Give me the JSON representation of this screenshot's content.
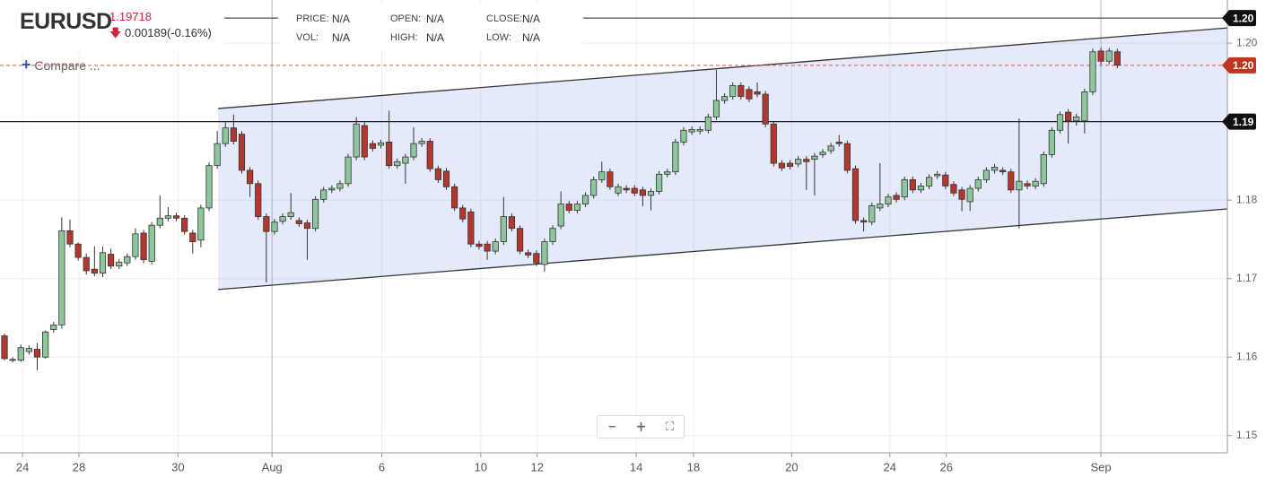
{
  "header": {
    "symbol": "EURUSD",
    "price": "1.19718",
    "change": "0.00189(-0.16%)",
    "compare": "Compare ...",
    "fields": [
      {
        "label": "PRICE:",
        "value": "N/A"
      },
      {
        "label": "OPEN:",
        "value": "N/A"
      },
      {
        "label": "CLOSE:",
        "value": "N/A"
      },
      {
        "label": "VOL:",
        "value": "N/A"
      },
      {
        "label": "HIGH:",
        "value": "N/A"
      },
      {
        "label": "LOW:",
        "value": "N/A"
      }
    ]
  },
  "chart_data": {
    "type": "candlestick",
    "ylim": [
      1.1478,
      1.2055
    ],
    "xlim": [
      -0.55,
      149.45
    ],
    "yticks": [
      {
        "value": 1.2,
        "label": "1.20"
      },
      {
        "value": 1.18,
        "label": "1.18"
      },
      {
        "value": 1.17,
        "label": "1.17"
      },
      {
        "value": 1.16,
        "label": "1.16"
      },
      {
        "value": 1.15,
        "label": "1.15"
      }
    ],
    "xticks": [
      {
        "value": 2.2,
        "label": "24"
      },
      {
        "value": 9.1,
        "label": "28"
      },
      {
        "value": 21.2,
        "label": "30"
      },
      {
        "value": 32.7,
        "label": "Aug"
      },
      {
        "value": 46.1,
        "label": "6"
      },
      {
        "value": 58.2,
        "label": "10"
      },
      {
        "value": 65.1,
        "label": "12"
      },
      {
        "value": 77.2,
        "label": "14"
      },
      {
        "value": 84.2,
        "label": "18"
      },
      {
        "value": 96.2,
        "label": "20"
      },
      {
        "value": 108.2,
        "label": "24"
      },
      {
        "value": 115.1,
        "label": "26"
      },
      {
        "value": 134.0,
        "label": "Sep"
      }
    ],
    "grid": true,
    "up_color": "#8cc69a",
    "down_color": "#b3372c",
    "price_lines": [
      {
        "value": 1.2032,
        "label": "1.20"
      },
      {
        "value": 1.19,
        "label": "1.19"
      }
    ],
    "last_price": {
      "value": 1.19718,
      "label": "1.20"
    },
    "channel": {
      "upper": {
        "x": [
          26.1,
          149.45
        ],
        "y": [
          1.19167,
          1.20194
        ]
      },
      "lower": {
        "x": [
          26.1,
          149.45
        ],
        "y": [
          1.16861,
          1.17888
        ]
      }
    },
    "ohlc": [
      [
        1.1627,
        1.163,
        1.1596,
        1.1598
      ],
      [
        1.1596,
        1.16,
        1.1593,
        1.1597
      ],
      [
        1.1596,
        1.1616,
        1.1594,
        1.1612
      ],
      [
        1.1607,
        1.1615,
        1.1603,
        1.1611
      ],
      [
        1.161,
        1.1618,
        1.1583,
        1.16
      ],
      [
        1.16,
        1.1634,
        1.1598,
        1.1632
      ],
      [
        1.1635,
        1.1645,
        1.1631,
        1.1641
      ],
      [
        1.1641,
        1.1778,
        1.1636,
        1.1761
      ],
      [
        1.1761,
        1.1775,
        1.174,
        1.1744
      ],
      [
        1.1744,
        1.1746,
        1.1723,
        1.1727
      ],
      [
        1.1727,
        1.1732,
        1.1705,
        1.171
      ],
      [
        1.1712,
        1.1741,
        1.1703,
        1.1707
      ],
      [
        1.1707,
        1.1741,
        1.1702,
        1.1733
      ],
      [
        1.1731,
        1.1738,
        1.1712,
        1.1716
      ],
      [
        1.1716,
        1.1725,
        1.1712,
        1.1721
      ],
      [
        1.172,
        1.1732,
        1.1716,
        1.1728
      ],
      [
        1.1728,
        1.1764,
        1.1724,
        1.1757
      ],
      [
        1.1758,
        1.1762,
        1.172,
        1.1724
      ],
      [
        1.1722,
        1.1772,
        1.1718,
        1.1768
      ],
      [
        1.1768,
        1.1806,
        1.1764,
        1.1777
      ],
      [
        1.1777,
        1.1791,
        1.1773,
        1.178
      ],
      [
        1.178,
        1.1784,
        1.1773,
        1.1777
      ],
      [
        1.1777,
        1.1781,
        1.1756,
        1.176
      ],
      [
        1.1758,
        1.1762,
        1.1732,
        1.1747
      ],
      [
        1.1749,
        1.1794,
        1.174,
        1.179
      ],
      [
        1.179,
        1.1848,
        1.1786,
        1.1844
      ],
      [
        1.1844,
        1.1888,
        1.184,
        1.1872
      ],
      [
        1.1872,
        1.1899,
        1.1868,
        1.1892
      ],
      [
        1.1892,
        1.1909,
        1.1871,
        1.1875
      ],
      [
        1.1884,
        1.1888,
        1.1834,
        1.1838
      ],
      [
        1.1838,
        1.1842,
        1.1804,
        1.1821
      ],
      [
        1.1821,
        1.1825,
        1.1775,
        1.1779
      ],
      [
        1.1779,
        1.1783,
        1.1695,
        1.176
      ],
      [
        1.176,
        1.1776,
        1.1756,
        1.1772
      ],
      [
        1.1773,
        1.1783,
        1.1769,
        1.1779
      ],
      [
        1.1779,
        1.1809,
        1.1775,
        1.1784
      ],
      [
        1.1774,
        1.1778,
        1.1766,
        1.177
      ],
      [
        1.1771,
        1.1775,
        1.1724,
        1.1764
      ],
      [
        1.1764,
        1.1805,
        1.176,
        1.1801
      ],
      [
        1.1801,
        1.1817,
        1.1797,
        1.1813
      ],
      [
        1.1813,
        1.1819,
        1.1809,
        1.1815
      ],
      [
        1.1815,
        1.1825,
        1.1811,
        1.1821
      ],
      [
        1.1821,
        1.1859,
        1.1817,
        1.1855
      ],
      [
        1.1855,
        1.1906,
        1.1851,
        1.1897
      ],
      [
        1.1895,
        1.1899,
        1.1851,
        1.1855
      ],
      [
        1.1872,
        1.1876,
        1.1862,
        1.1866
      ],
      [
        1.187,
        1.1877,
        1.1866,
        1.1873
      ],
      [
        1.1874,
        1.1914,
        1.184,
        1.1844
      ],
      [
        1.1844,
        1.1853,
        1.184,
        1.1849
      ],
      [
        1.1847,
        1.1859,
        1.1821,
        1.1855
      ],
      [
        1.1855,
        1.1893,
        1.1851,
        1.1872
      ],
      [
        1.1872,
        1.1879,
        1.1868,
        1.1875
      ],
      [
        1.1875,
        1.1879,
        1.1836,
        1.184
      ],
      [
        1.184,
        1.1844,
        1.1822,
        1.1826
      ],
      [
        1.1837,
        1.1841,
        1.1813,
        1.1817
      ],
      [
        1.1817,
        1.1821,
        1.1786,
        1.179
      ],
      [
        1.179,
        1.1794,
        1.1772,
        1.1776
      ],
      [
        1.1785,
        1.1789,
        1.174,
        1.1744
      ],
      [
        1.1744,
        1.1748,
        1.1737,
        1.1741
      ],
      [
        1.1744,
        1.1748,
        1.1724,
        1.1735
      ],
      [
        1.1735,
        1.1751,
        1.1731,
        1.1747
      ],
      [
        1.1747,
        1.1804,
        1.1743,
        1.1779
      ],
      [
        1.1779,
        1.1783,
        1.176,
        1.1764
      ],
      [
        1.1764,
        1.1768,
        1.1731,
        1.1735
      ],
      [
        1.1733,
        1.1737,
        1.1726,
        1.173
      ],
      [
        1.1732,
        1.1736,
        1.1716,
        1.172
      ],
      [
        1.1718,
        1.1751,
        1.1709,
        1.1747
      ],
      [
        1.1747,
        1.1768,
        1.1743,
        1.1764
      ],
      [
        1.1767,
        1.1811,
        1.1763,
        1.1795
      ],
      [
        1.1795,
        1.1799,
        1.1783,
        1.1787
      ],
      [
        1.1787,
        1.1799,
        1.1783,
        1.1795
      ],
      [
        1.1795,
        1.181,
        1.1791,
        1.1806
      ],
      [
        1.1806,
        1.183,
        1.1802,
        1.1826
      ],
      [
        1.1826,
        1.1849,
        1.1822,
        1.1836
      ],
      [
        1.1836,
        1.184,
        1.1813,
        1.1817
      ],
      [
        1.1809,
        1.1821,
        1.1805,
        1.1817
      ],
      [
        1.1815,
        1.1819,
        1.1809,
        1.1813
      ],
      [
        1.1815,
        1.1819,
        1.1805,
        1.1809
      ],
      [
        1.1813,
        1.1817,
        1.1792,
        1.1806
      ],
      [
        1.1806,
        1.1815,
        1.1787,
        1.1811
      ],
      [
        1.1811,
        1.1837,
        1.1807,
        1.1833
      ],
      [
        1.1833,
        1.184,
        1.1829,
        1.1836
      ],
      [
        1.1836,
        1.1878,
        1.1832,
        1.1874
      ],
      [
        1.1874,
        1.1893,
        1.187,
        1.1889
      ],
      [
        1.1887,
        1.1894,
        1.1883,
        1.189
      ],
      [
        1.1888,
        1.1894,
        1.1884,
        1.189
      ],
      [
        1.1889,
        1.191,
        1.1885,
        1.1906
      ],
      [
        1.1906,
        1.1966,
        1.1902,
        1.1927
      ],
      [
        1.1927,
        1.1936,
        1.1923,
        1.1932
      ],
      [
        1.1932,
        1.195,
        1.1928,
        1.1946
      ],
      [
        1.1946,
        1.195,
        1.1928,
        1.1932
      ],
      [
        1.1941,
        1.1945,
        1.1925,
        1.1929
      ],
      [
        1.1938,
        1.195,
        1.1931,
        1.1935
      ],
      [
        1.1935,
        1.1939,
        1.1893,
        1.1897
      ],
      [
        1.1897,
        1.1901,
        1.1843,
        1.1847
      ],
      [
        1.1847,
        1.1851,
        1.1837,
        1.1841
      ],
      [
        1.1847,
        1.1851,
        1.1839,
        1.1843
      ],
      [
        1.1846,
        1.1856,
        1.1842,
        1.1852
      ],
      [
        1.1852,
        1.1856,
        1.1813,
        1.1849
      ],
      [
        1.1852,
        1.186,
        1.1806,
        1.1856
      ],
      [
        1.1858,
        1.1865,
        1.1854,
        1.1861
      ],
      [
        1.1863,
        1.1873,
        1.1859,
        1.1869
      ],
      [
        1.1874,
        1.1883,
        1.1868,
        1.1872
      ],
      [
        1.1872,
        1.1876,
        1.1834,
        1.1838
      ],
      [
        1.184,
        1.1844,
        1.177,
        1.1774
      ],
      [
        1.1774,
        1.1778,
        1.176,
        1.1772
      ],
      [
        1.1772,
        1.1797,
        1.1768,
        1.1793
      ],
      [
        1.179,
        1.1847,
        1.1786,
        1.1795
      ],
      [
        1.1795,
        1.1808,
        1.1791,
        1.1804
      ],
      [
        1.1806,
        1.181,
        1.1797,
        1.1801
      ],
      [
        1.1804,
        1.183,
        1.18,
        1.1826
      ],
      [
        1.1826,
        1.183,
        1.1809,
        1.1813
      ],
      [
        1.1813,
        1.1822,
        1.1809,
        1.1818
      ],
      [
        1.1818,
        1.1833,
        1.1814,
        1.1829
      ],
      [
        1.1831,
        1.1837,
        1.1827,
        1.1833
      ],
      [
        1.1832,
        1.1836,
        1.1814,
        1.1818
      ],
      [
        1.182,
        1.1824,
        1.1805,
        1.1809
      ],
      [
        1.1813,
        1.1817,
        1.1786,
        1.1801
      ],
      [
        1.1798,
        1.1819,
        1.1786,
        1.1815
      ],
      [
        1.1815,
        1.183,
        1.1811,
        1.1826
      ],
      [
        1.1826,
        1.1842,
        1.1822,
        1.1838
      ],
      [
        1.1838,
        1.1846,
        1.1834,
        1.1842
      ],
      [
        1.1838,
        1.1842,
        1.1832,
        1.1836
      ],
      [
        1.1836,
        1.184,
        1.1809,
        1.1813
      ],
      [
        1.1813,
        1.1904,
        1.1764,
        1.1824
      ],
      [
        1.1821,
        1.1825,
        1.1814,
        1.1818
      ],
      [
        1.1818,
        1.1828,
        1.1814,
        1.1824
      ],
      [
        1.1821,
        1.1862,
        1.1817,
        1.1858
      ],
      [
        1.1858,
        1.1893,
        1.1854,
        1.1889
      ],
      [
        1.1889,
        1.1913,
        1.1885,
        1.1909
      ],
      [
        1.1912,
        1.1916,
        1.1872,
        1.1901
      ],
      [
        1.1901,
        1.191,
        1.1895,
        1.1906
      ],
      [
        1.1901,
        1.1942,
        1.1885,
        1.1938
      ],
      [
        1.1938,
        1.1993,
        1.1934,
        1.1989
      ],
      [
        1.199,
        1.1994,
        1.1973,
        1.1977
      ],
      [
        1.1977,
        1.1994,
        1.1973,
        1.199
      ],
      [
        1.1989,
        1.1993,
        1.1968,
        1.1972
      ]
    ]
  }
}
